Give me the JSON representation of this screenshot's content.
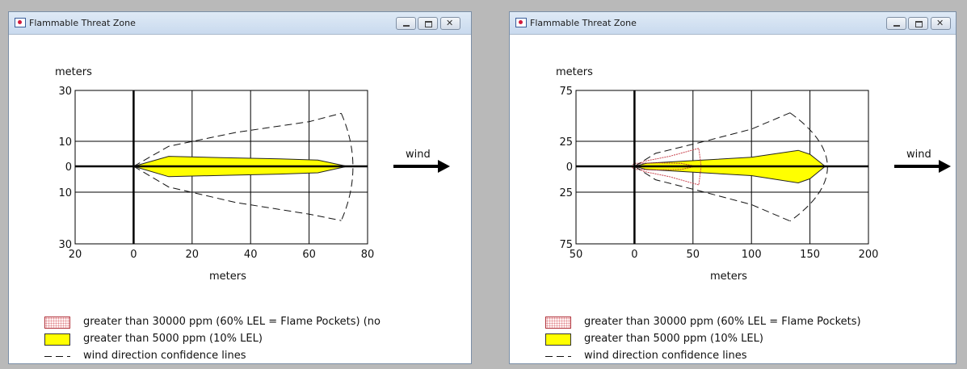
{
  "windows": [
    {
      "title": "Flammable Threat Zone",
      "chart_data": {
        "type": "area",
        "ylabel": "meters",
        "xlabel": "meters",
        "wind_label": "wind",
        "x_ticks": [
          "20",
          "0",
          "20",
          "40",
          "60",
          "80"
        ],
        "x_tick_values": [
          -20,
          0,
          20,
          40,
          60,
          80
        ],
        "y_ticks": [
          "30",
          "10",
          "0",
          "10",
          "30"
        ],
        "y_tick_values": [
          30,
          10,
          0,
          -10,
          -30
        ],
        "xlim": [
          -20,
          80
        ],
        "ylim": [
          -30,
          30
        ],
        "y_axis_scale": "symmetric nonlinear (tick labels 30, 10, 0, 10, 30 evenly spaced)",
        "grid": true,
        "series": [
          {
            "name": "greater than 5000 ppm (10% LEL)",
            "color": "#ffff00",
            "upper": [
              [
                0,
                0
              ],
              [
                12,
                4
              ],
              [
                30,
                3.5
              ],
              [
                50,
                3
              ],
              [
                63,
                2.5
              ],
              [
                73,
                0
              ]
            ],
            "lower": [
              [
                0,
                0
              ],
              [
                12,
                -4
              ],
              [
                30,
                -3.5
              ],
              [
                50,
                -3
              ],
              [
                63,
                -2.5
              ],
              [
                73,
                0
              ]
            ]
          },
          {
            "name": "wind direction confidence lines",
            "color": "#111111",
            "upper": [
              [
                0,
                0
              ],
              [
                12,
                8
              ],
              [
                35,
                13.5
              ],
              [
                60,
                17.7
              ],
              [
                71,
                21
              ]
            ],
            "lower": [
              [
                0,
                0
              ],
              [
                12,
                -8
              ],
              [
                35,
                -14
              ],
              [
                60,
                -18.5
              ],
              [
                71,
                -21
              ]
            ],
            "arc_x": 75
          }
        ],
        "legend": [
          {
            "kind": "red-dotted",
            "label": "greater than 30000 ppm (60% LEL = Flame Pockets) (no"
          },
          {
            "kind": "yellow",
            "label": "greater than 5000 ppm (10% LEL)"
          },
          {
            "kind": "dash",
            "label": "wind direction confidence lines"
          }
        ]
      }
    },
    {
      "title": "Flammable Threat Zone",
      "chart_data": {
        "type": "area",
        "ylabel": "meters",
        "xlabel": "meters",
        "wind_label": "wind",
        "x_ticks": [
          "50",
          "0",
          "50",
          "100",
          "150",
          "200"
        ],
        "x_tick_values": [
          -50,
          0,
          50,
          100,
          150,
          200
        ],
        "y_ticks": [
          "75",
          "25",
          "0",
          "25",
          "75"
        ],
        "y_tick_values": [
          75,
          25,
          0,
          -25,
          -75
        ],
        "xlim": [
          -50,
          200
        ],
        "ylim": [
          -75,
          75
        ],
        "y_axis_scale": "symmetric nonlinear (tick labels 75, 25, 0, 25, 75 evenly spaced)",
        "grid": true,
        "series": [
          {
            "name": "greater than 5000 ppm (10% LEL)",
            "color": "#ffff00",
            "upper": [
              [
                0,
                0
              ],
              [
                10,
                3
              ],
              [
                40,
                5
              ],
              [
                100,
                9
              ],
              [
                140,
                16
              ],
              [
                150,
                12
              ],
              [
                163,
                0
              ]
            ],
            "lower": [
              [
                0,
                0
              ],
              [
                10,
                -3
              ],
              [
                40,
                -5
              ],
              [
                100,
                -9
              ],
              [
                140,
                -16
              ],
              [
                150,
                -12
              ],
              [
                163,
                0
              ]
            ]
          },
          {
            "name": "greater than 30000 ppm (60% LEL = Flame Pockets)",
            "color": "#b0313a",
            "upper": [
              [
                -3,
                0
              ],
              [
                0,
                3
              ],
              [
                20,
                3.5
              ],
              [
                40,
                3
              ],
              [
                52,
                0
              ]
            ],
            "lower": [
              [
                -3,
                0
              ],
              [
                0,
                -3
              ],
              [
                20,
                -3.5
              ],
              [
                40,
                -3
              ],
              [
                52,
                0
              ]
            ]
          },
          {
            "name": "greater than 30000 ppm (60% LEL = Flame Pockets)",
            "color": "#c7404b",
            "upper": [
              [
                0,
                0
              ],
              [
                8,
                5
              ],
              [
                30,
                10
              ],
              [
                55,
                18
              ],
              [
                57,
                0
              ]
            ],
            "lower": [
              [
                0,
                0
              ],
              [
                8,
                -5
              ],
              [
                30,
                -10
              ],
              [
                55,
                -18
              ],
              [
                57,
                0
              ]
            ]
          },
          {
            "name": "wind direction confidence lines",
            "color": "#111111",
            "upper": [
              [
                0,
                0
              ],
              [
                18,
                13
              ],
              [
                60,
                25
              ],
              [
                100,
                37
              ],
              [
                133,
                53
              ]
            ],
            "lower": [
              [
                0,
                0
              ],
              [
                18,
                -13
              ],
              [
                60,
                -25
              ],
              [
                100,
                -37
              ],
              [
                133,
                -53
              ]
            ],
            "arc_x": 165
          }
        ],
        "legend": [
          {
            "kind": "red-dotted",
            "label": "greater than 30000 ppm (60% LEL = Flame Pockets)"
          },
          {
            "kind": "yellow",
            "label": "greater than 5000 ppm (10% LEL)"
          },
          {
            "kind": "dash",
            "label": "wind direction confidence lines"
          }
        ]
      }
    }
  ]
}
